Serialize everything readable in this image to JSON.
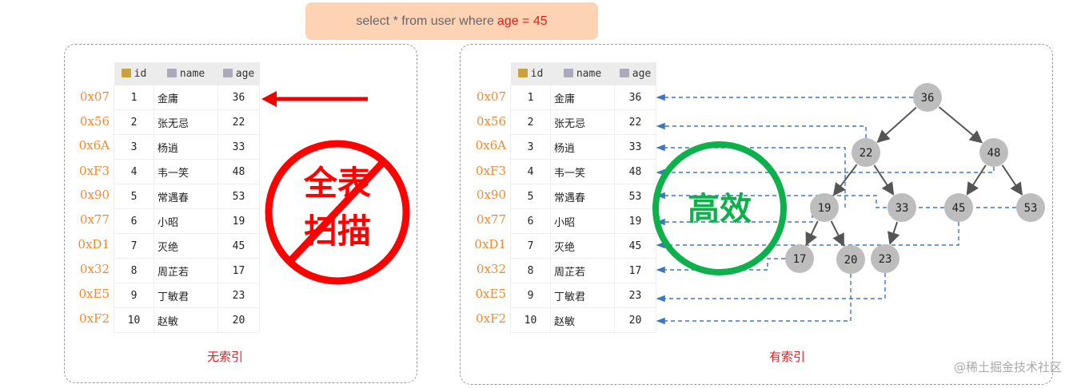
{
  "query": {
    "prefix": "select * from user where ",
    "highlight": "age = 45"
  },
  "columns": [
    "id",
    "name",
    "age"
  ],
  "rows": [
    {
      "addr": "0x07",
      "id": "1",
      "name": "金庸",
      "age": "36"
    },
    {
      "addr": "0x56",
      "id": "2",
      "name": "张无忌",
      "age": "22"
    },
    {
      "addr": "0x6A",
      "id": "3",
      "name": "杨逍",
      "age": "33"
    },
    {
      "addr": "0xF3",
      "id": "4",
      "name": "韦一笑",
      "age": "48"
    },
    {
      "addr": "0x90",
      "id": "5",
      "name": "常遇春",
      "age": "53"
    },
    {
      "addr": "0x77",
      "id": "6",
      "name": "小昭",
      "age": "19"
    },
    {
      "addr": "0xD1",
      "id": "7",
      "name": "灭绝",
      "age": "45"
    },
    {
      "addr": "0x32",
      "id": "8",
      "name": "周芷若",
      "age": "17"
    },
    {
      "addr": "0xE5",
      "id": "9",
      "name": "丁敏君",
      "age": "23"
    },
    {
      "addr": "0xF2",
      "id": "10",
      "name": "赵敏",
      "age": "20"
    }
  ],
  "left": {
    "caption": "无索引",
    "stamp_line1": "全表",
    "stamp_line2": "扫描",
    "stamp_color": "#ff0000"
  },
  "right": {
    "caption": "有索引",
    "stamp": "高效",
    "stamp_color": "#0db14b"
  },
  "tree": {
    "nodes": [
      "36",
      "22",
      "48",
      "19",
      "33",
      "45",
      "53",
      "17",
      "20",
      "23"
    ]
  },
  "watermark": "@稀土掘金技术社区"
}
